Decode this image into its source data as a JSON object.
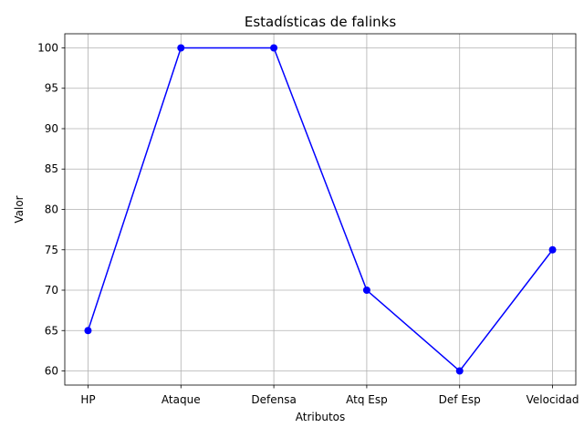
{
  "chart_data": {
    "type": "line",
    "title": "Estadísticas de falinks",
    "xlabel": "Atributos",
    "ylabel": "Valor",
    "categories": [
      "HP",
      "Ataque",
      "Defensa",
      "Atq Esp",
      "Def Esp",
      "Velocidad"
    ],
    "series": [
      {
        "values": [
          65,
          100,
          100,
          70,
          60,
          75
        ]
      }
    ],
    "ylim": [
      58.25,
      101.75
    ],
    "yticks": [
      60,
      65,
      70,
      75,
      80,
      85,
      90,
      95,
      100
    ],
    "grid": true,
    "marker": "circle",
    "colors": {
      "line": "#0000ff"
    }
  }
}
